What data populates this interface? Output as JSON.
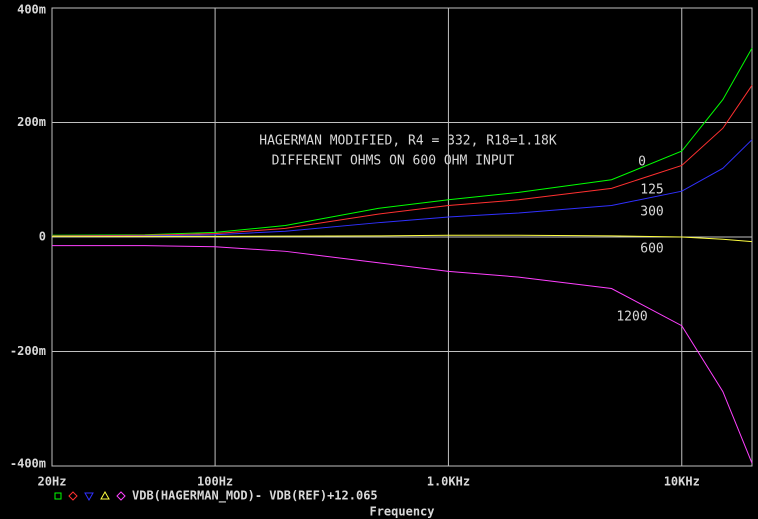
{
  "chart_data": {
    "type": "line",
    "annotations": [
      "HAGERMAN MODIFIED, R4 = 332, R18=1.18K",
      "DIFFERENT OHMS ON 600 OHM INPUT"
    ],
    "legend_text": "VDB(HAGERMAN_MOD)- VDB(REF)+12.065",
    "xlabel": "Frequency",
    "xscale": "log",
    "grid": true,
    "xlim": [
      20,
      20000
    ],
    "xticks": [
      {
        "value": 20,
        "label": "20Hz"
      },
      {
        "value": 100,
        "label": "100Hz"
      },
      {
        "value": 1000,
        "label": "1.0KHz"
      },
      {
        "value": 10000,
        "label": "10KHz"
      }
    ],
    "ylim": [
      -0.4,
      0.4
    ],
    "yticks": [
      {
        "value": -0.4,
        "label": "-400m"
      },
      {
        "value": -0.2,
        "label": "-200m"
      },
      0,
      {
        "value": 0.2,
        "label": "200m"
      },
      {
        "value": 0.4,
        "label": "400m"
      }
    ],
    "x": [
      20,
      50,
      100,
      200,
      500,
      1000,
      2000,
      5000,
      10000,
      15000,
      20000
    ],
    "series": [
      {
        "name": "0",
        "color": "#00ff00",
        "values": [
          0.003,
          0.004,
          0.008,
          0.02,
          0.05,
          0.065,
          0.078,
          0.1,
          0.15,
          0.24,
          0.33
        ]
      },
      {
        "name": "125",
        "color": "#ff3030",
        "values": [
          0.002,
          0.003,
          0.006,
          0.015,
          0.04,
          0.055,
          0.065,
          0.085,
          0.125,
          0.19,
          0.265
        ]
      },
      {
        "name": "300",
        "color": "#3030ff",
        "values": [
          0.001,
          0.002,
          0.004,
          0.01,
          0.025,
          0.035,
          0.042,
          0.055,
          0.08,
          0.12,
          0.17
        ]
      },
      {
        "name": "600",
        "color": "#ffff40",
        "values": [
          0.001,
          0.001,
          0.001,
          0.0015,
          0.002,
          0.003,
          0.003,
          0.002,
          0,
          -0.004,
          -0.008
        ]
      },
      {
        "name": "1200",
        "color": "#ff40ff",
        "values": [
          -0.015,
          -0.015,
          -0.017,
          -0.025,
          -0.045,
          -0.06,
          -0.07,
          -0.09,
          -0.155,
          -0.27,
          -0.395
        ]
      }
    ]
  }
}
